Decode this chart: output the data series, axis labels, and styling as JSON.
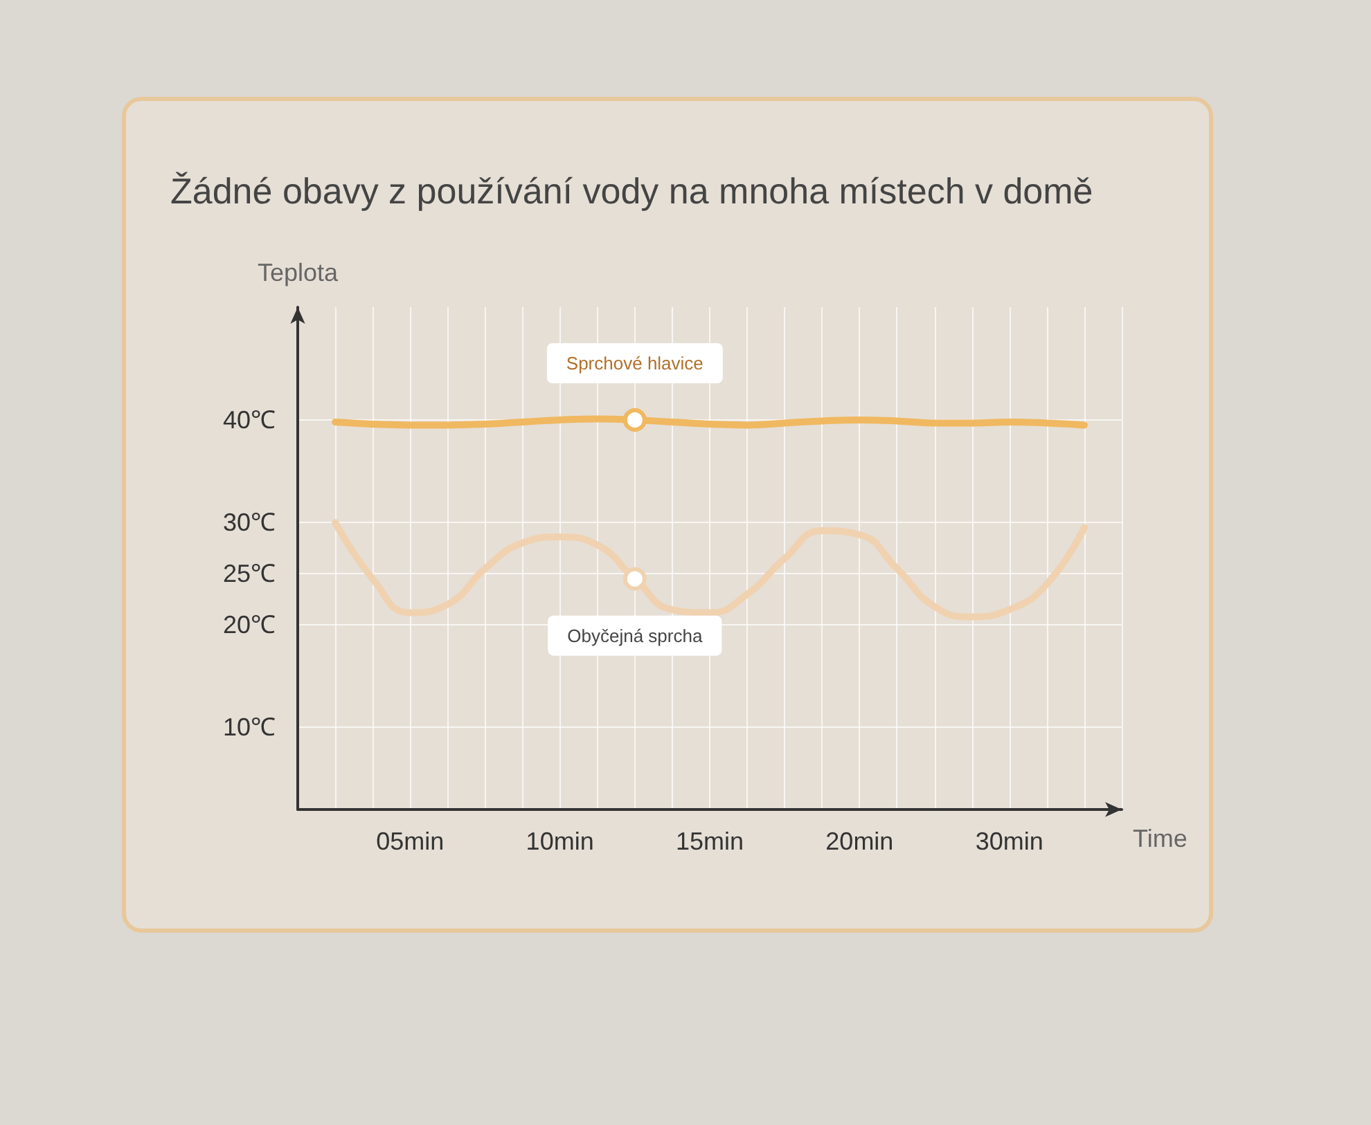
{
  "chart_data": {
    "type": "line",
    "title": "Žádné obavy z používání vody na mnoha místech v domě",
    "xlabel": "Time",
    "ylabel": "Teplota",
    "categories": [
      null,
      null,
      null,
      "05min",
      null,
      null,
      null,
      "10min",
      null,
      null,
      null,
      "15min",
      null,
      null,
      null,
      "20min",
      null,
      null,
      null,
      "30min",
      null,
      null,
      null
    ],
    "series": [
      {
        "name": "Sprchové hlavice",
        "color": "#f0b860",
        "values": [
          null,
          39.8,
          39.6,
          39.5,
          39.5,
          39.6,
          39.8,
          40,
          40.1,
          40,
          39.8,
          39.6,
          39.5,
          39.7,
          39.9,
          40,
          39.9,
          39.7,
          39.7,
          39.8,
          39.7,
          39.5,
          null
        ]
      },
      {
        "name": "Obyčejná sprcha",
        "color": "#f0d2b0",
        "values": [
          null,
          30,
          24.5,
          21.2,
          22,
          25.5,
          28,
          28.6,
          27.8,
          24.5,
          21.5,
          21.2,
          23,
          26.5,
          29.2,
          28.8,
          25.5,
          21.8,
          20.8,
          21.5,
          24,
          29.5,
          null
        ]
      }
    ],
    "ylim": [
      2,
      51
    ],
    "yticks": [
      {
        "value": 10,
        "label": "10℃"
      },
      {
        "value": 20,
        "label": "20℃"
      },
      {
        "value": 25,
        "label": "25℃"
      },
      {
        "value": 30,
        "label": "30℃"
      },
      {
        "value": 40,
        "label": "40℃"
      }
    ],
    "grid": true,
    "marker": "none",
    "line_style": "solid",
    "legend": false
  }
}
